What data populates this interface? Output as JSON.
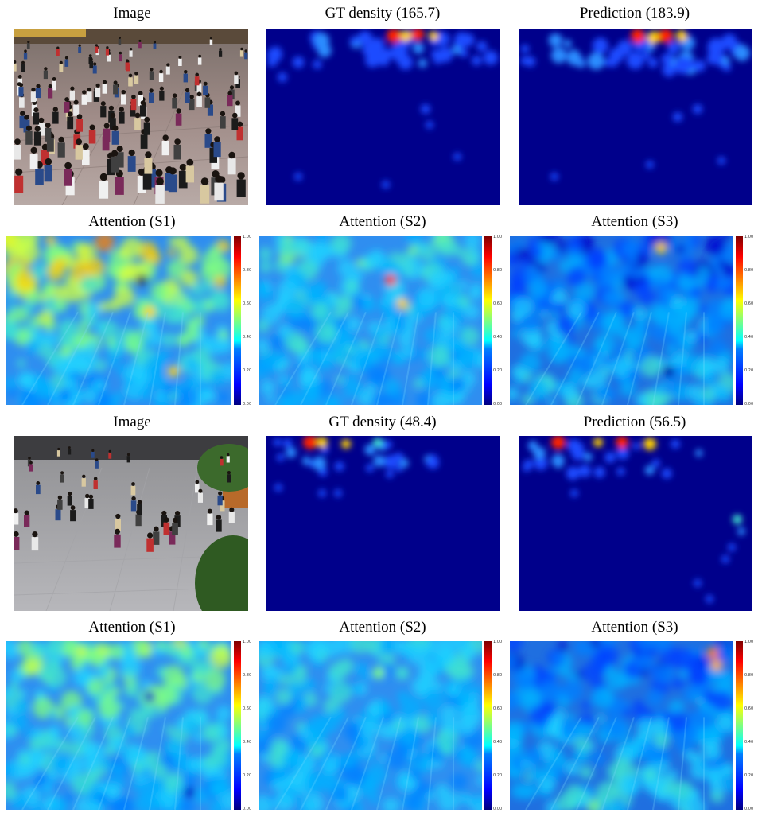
{
  "figure": {
    "sample_1": {
      "titles": {
        "image": "Image",
        "gt": "GT density (165.7)",
        "pred": "Prediction (183.9)",
        "att1": "Attention (S1)",
        "att2": "Attention (S2)",
        "att3": "Attention (S3)"
      }
    },
    "sample_2": {
      "titles": {
        "image": "Image",
        "gt": "GT density (48.4)",
        "pred": "Prediction (56.5)",
        "att1": "Attention (S1)",
        "att2": "Attention (S2)",
        "att3": "Attention (S3)"
      }
    },
    "colorbar_ticks": [
      "1.00",
      "0.80",
      "0.60",
      "0.40",
      "0.20",
      "0.00"
    ],
    "colors": {
      "density_background": "#00008b",
      "attention_base": "#2f86e8",
      "photo_floor": "#9c8a86"
    }
  }
}
